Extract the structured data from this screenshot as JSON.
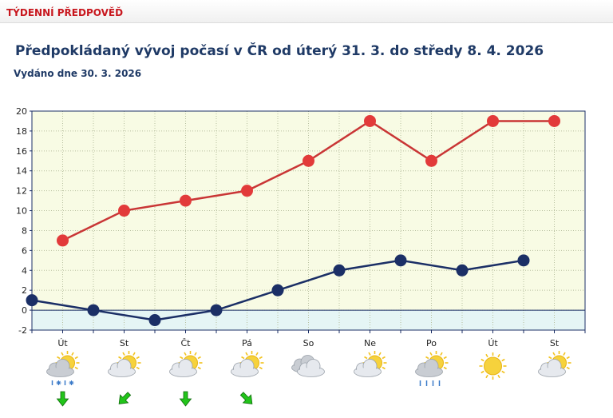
{
  "header": {
    "title": "TÝDENNÍ PŘEDPOVĚĎ"
  },
  "forecast": {
    "heading": "Předpokládaný vývoj počasí v ČR od úterý 31. 3. do středy 8. 4. 2026",
    "issued": "Vydáno dne 30. 3. 2026"
  },
  "chart_data": {
    "type": "line",
    "ylim": [
      -2,
      20
    ],
    "yticks": [
      -2,
      0,
      2,
      4,
      6,
      8,
      10,
      12,
      14,
      16,
      18,
      20
    ],
    "grid": true,
    "days": [
      "Út",
      "St",
      "Čt",
      "Pá",
      "So",
      "Ne",
      "Po",
      "Út",
      "St"
    ],
    "series": [
      {
        "key": "max",
        "color": "#c93535",
        "marker": "#e23a3a",
        "values": [
          null,
          7,
          null,
          10,
          null,
          11,
          null,
          12,
          null,
          15,
          null,
          19,
          null,
          15,
          null,
          19,
          null,
          19
        ]
      },
      {
        "key": "min",
        "color": "#1b2f66",
        "marker": "#1b2f66",
        "values": [
          1,
          null,
          0,
          null,
          -1,
          null,
          0,
          null,
          2,
          null,
          4,
          null,
          5,
          null,
          4,
          null,
          5,
          null
        ]
      }
    ],
    "icons": [
      "cloud-snow-icon",
      "partly-cloudy-icon",
      "partly-cloudy-icon",
      "partly-cloudy-icon",
      "cloudy-icon",
      "partly-cloudy-icon",
      "cloud-rain-icon",
      "sun-icon",
      "partly-cloudy-icon"
    ],
    "wind": [
      "down",
      "down-left",
      "down",
      "down-right",
      null,
      null,
      null,
      null,
      null
    ],
    "colors": {
      "plot_bg": "#f8fbe4",
      "below_zero_bg": "#e5f5f5",
      "frame": "#1b2f66",
      "wind": "#22c41a"
    }
  }
}
